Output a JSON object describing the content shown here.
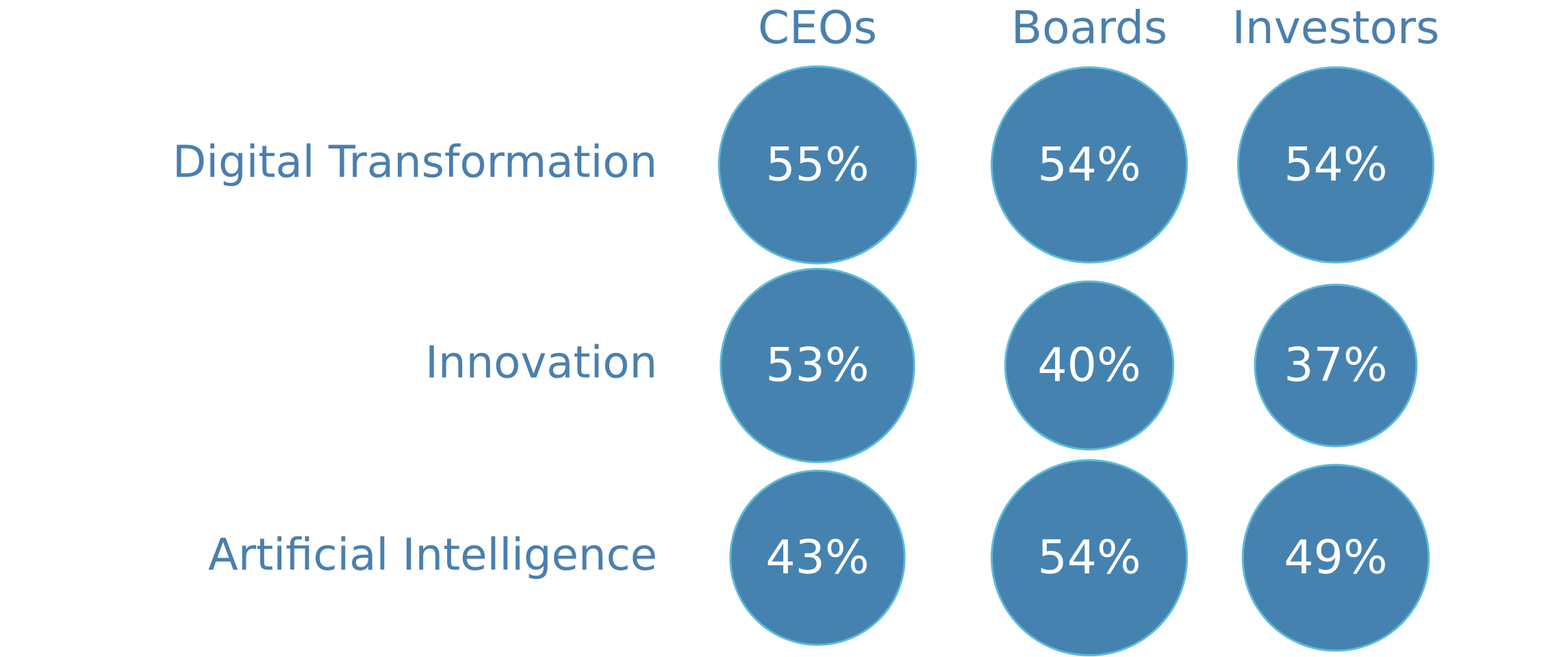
{
  "chart_data": {
    "type": "bubble",
    "categories": [
      "Digital Transformation",
      "Innovation",
      "Artificial Intelligence"
    ],
    "color": "#4682b0",
    "edge_color": "#5bbcd8",
    "series": [
      {
        "name": "CEOs",
        "values": [
          55,
          53,
          43
        ],
        "value_labels": [
          "55%",
          "53%",
          "43%"
        ]
      },
      {
        "name": "Boards",
        "values": [
          54,
          40,
          54
        ],
        "value_labels": [
          "54%",
          "40%",
          "54%"
        ]
      },
      {
        "name": "Investors",
        "values": [
          54,
          37,
          49
        ],
        "value_labels": [
          "54%",
          "37%",
          "49%"
        ]
      }
    ]
  }
}
